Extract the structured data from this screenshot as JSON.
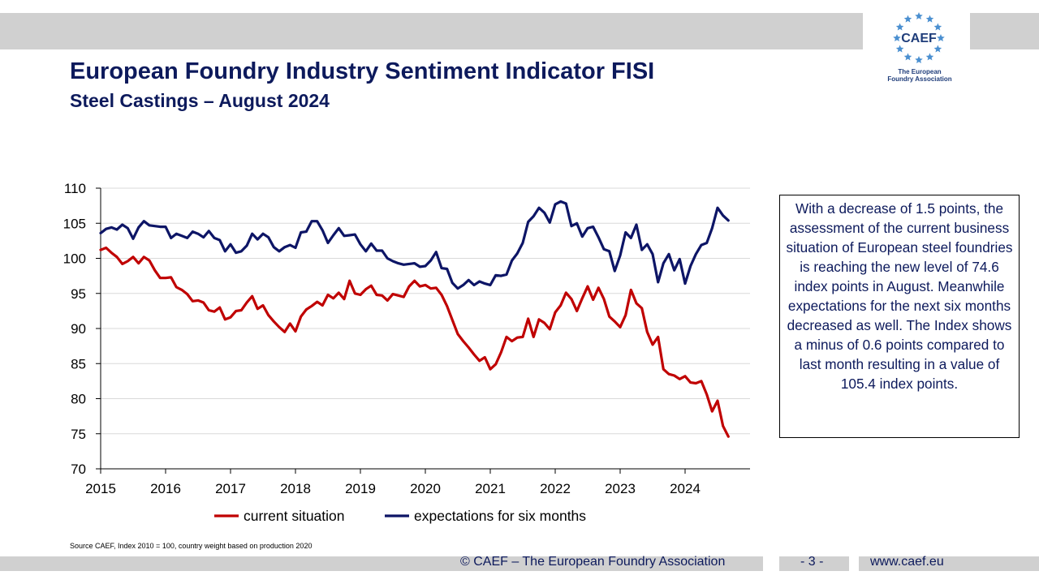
{
  "header": {
    "title": "European Foundry Industry Sentiment Indicator FISI",
    "subtitle": "Steel Castings – August 2024"
  },
  "logo": {
    "wordmark": "CAEF",
    "tagline_line1": "The European",
    "tagline_line2": "Foundry Association",
    "star_color": "#4a8fd0"
  },
  "commentary": "With a decrease of 1.5 points, the assessment of the current business situation of European steel foundries is reaching the new level of 74.6 index points in August. Meanwhile expectations for the next six months decreased as well. The Index shows a minus of 0.6 points compared to last month resulting in a value of 105.4 index points.",
  "source_note": "Source CAEF, Index 2010 = 100, country weight based on production 2020",
  "footer": {
    "copyright": "© CAEF – The European Foundry Association",
    "page": "- 3 -",
    "website": "www.caef.eu"
  },
  "chart_data": {
    "type": "line",
    "title": "",
    "xlabel": "",
    "ylabel": "",
    "ylim": [
      70,
      110
    ],
    "yticks": [
      "70",
      "75",
      "80",
      "85",
      "90",
      "95",
      "100",
      "105",
      "110"
    ],
    "xticks": [
      "2015",
      "2016",
      "2017",
      "2018",
      "2019",
      "2020",
      "2021",
      "2022",
      "2023",
      "2024"
    ],
    "x_start": "2015-01",
    "x_end": "2024-08",
    "grid": "horizontal",
    "legend": "bottom",
    "series": [
      {
        "name": "current situation",
        "color": "#c00000",
        "values": [
          101.2,
          101.5,
          100.8,
          100.2,
          99.2,
          99.6,
          100.2,
          99.3,
          100.2,
          99.7,
          98.3,
          97.2,
          97.2,
          97.3,
          95.9,
          95.5,
          94.9,
          93.9,
          94.0,
          93.7,
          92.6,
          92.4,
          93.0,
          91.3,
          91.6,
          92.5,
          92.6,
          93.7,
          94.6,
          92.8,
          93.3,
          91.9,
          91.0,
          90.2,
          89.5,
          90.7,
          89.6,
          91.7,
          92.7,
          93.2,
          93.8,
          93.3,
          94.8,
          94.3,
          95.1,
          94.2,
          96.8,
          95.0,
          94.8,
          95.6,
          96.1,
          94.8,
          94.7,
          94.0,
          94.9,
          94.7,
          94.5,
          96.0,
          96.8,
          96.0,
          96.2,
          95.7,
          95.8,
          94.8,
          93.2,
          91.2,
          89.2,
          88.2,
          87.3,
          86.3,
          85.4,
          85.9,
          84.2,
          84.9,
          86.6,
          88.8,
          88.2,
          88.7,
          88.8,
          91.4,
          88.8,
          91.3,
          90.8,
          89.9,
          92.3,
          93.3,
          95.1,
          94.2,
          92.5,
          94.3,
          96.0,
          94.1,
          95.8,
          94.2,
          91.7,
          91.0,
          90.2,
          91.9,
          95.5,
          93.6,
          92.9,
          89.5,
          87.7,
          88.8,
          84.2,
          83.5,
          83.3,
          82.8,
          83.2,
          82.3,
          82.2,
          82.5,
          80.6,
          78.2,
          79.7,
          76.1,
          74.6
        ]
      },
      {
        "name": "expectations for six months",
        "color": "#0d1566",
        "values": [
          103.6,
          104.2,
          104.4,
          104.1,
          104.8,
          104.3,
          102.8,
          104.4,
          105.3,
          104.7,
          104.6,
          104.5,
          104.5,
          102.9,
          103.5,
          103.2,
          102.9,
          103.8,
          103.5,
          103.0,
          103.9,
          102.9,
          102.6,
          101.0,
          102.0,
          100.8,
          101.0,
          101.8,
          103.5,
          102.7,
          103.5,
          103.0,
          101.6,
          101.0,
          101.6,
          101.9,
          101.5,
          103.7,
          103.8,
          105.3,
          105.3,
          104.0,
          102.2,
          103.3,
          104.3,
          103.2,
          103.3,
          103.4,
          102.0,
          101.0,
          102.1,
          101.1,
          101.1,
          100.0,
          99.6,
          99.3,
          99.1,
          99.2,
          99.3,
          98.8,
          98.9,
          99.7,
          100.9,
          98.6,
          98.5,
          96.5,
          95.7,
          96.2,
          96.9,
          96.2,
          96.7,
          96.4,
          96.2,
          97.6,
          97.5,
          97.7,
          99.7,
          100.7,
          102.2,
          105.2,
          106.0,
          107.2,
          106.5,
          105.1,
          107.7,
          108.1,
          107.8,
          104.6,
          105.0,
          103.1,
          104.3,
          104.5,
          103.0,
          101.3,
          101.0,
          98.2,
          100.4,
          103.7,
          102.9,
          104.8,
          101.2,
          102.0,
          100.6,
          96.6,
          99.3,
          100.6,
          98.3,
          99.9,
          96.4,
          98.9,
          100.6,
          101.9,
          102.2,
          104.3,
          107.2,
          106.1,
          105.4
        ]
      }
    ]
  }
}
